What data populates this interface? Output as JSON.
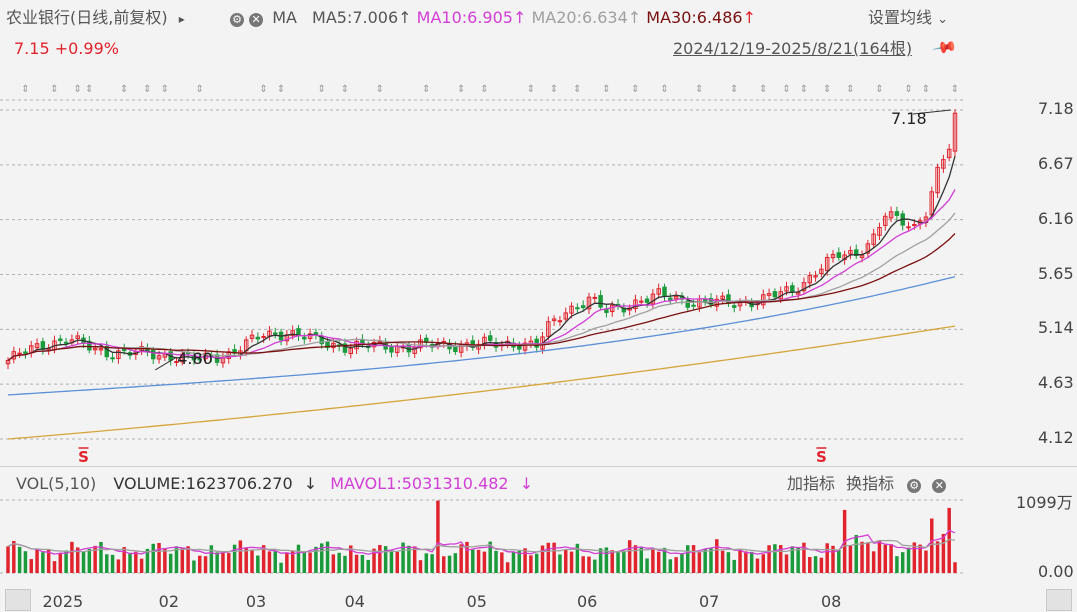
{
  "header": {
    "stock_name": "农业银行",
    "mode": "(日线,前复权)",
    "expand_glyph": "▸",
    "ma_label": "MA",
    "ma5": "MA5:7.006",
    "ma10": "MA10:6.905",
    "ma20": "MA20:6.634",
    "ma30": "MA30:6.486",
    "arrow_up": "↑",
    "settings": "设置均线",
    "settings_chevron": "⌄",
    "price": "7.15",
    "change": "+0.99%",
    "range": "2024/12/19-2025/8/21(164根)"
  },
  "sub_header": {
    "vol_label": "VOL(5,10)",
    "volume": "VOLUME:1623706.270",
    "volume_arrow": "↓",
    "mavol1": "MAVOL1:5031310.482",
    "mavol_arrow": "↓",
    "add_indicator": "加指标",
    "switch_indicator": "换指标"
  },
  "price_axis": [
    "7.18",
    "6.67",
    "6.16",
    "5.65",
    "5.14",
    "4.63",
    "4.12"
  ],
  "volume_axis": [
    "1099万",
    "0.00"
  ],
  "x_axis": [
    "2025",
    "02",
    "03",
    "04",
    "05",
    "06",
    "07",
    "08"
  ],
  "annotations": {
    "high": "7.18",
    "low": "4.80",
    "marker": "S"
  },
  "colors": {
    "up": "#e0232d",
    "down": "#1a9a3a",
    "ma5": "#333333",
    "ma10": "#d23ed6",
    "ma20": "#a0a0a0",
    "ma30": "#7a1010",
    "ma60": "#5b8fd6",
    "ma120": "#d4a53a"
  },
  "chart_data": {
    "type": "candlestick",
    "title": "农业银行 (日线,前复权)",
    "x_range": [
      "2024/12/19",
      "2025/8/21"
    ],
    "bars": 164,
    "ylim": [
      4.12,
      7.18
    ],
    "last_close": 7.15,
    "high": 7.18,
    "low": 4.8,
    "ma": {
      "MA5": 7.006,
      "MA10": 6.905,
      "MA20": 6.634,
      "MA30": 6.486
    },
    "close_path": [
      [
        0,
        4.85
      ],
      [
        6,
        5.0
      ],
      [
        10,
        5.05
      ],
      [
        15,
        4.95
      ],
      [
        20,
        4.92
      ],
      [
        28,
        4.9
      ],
      [
        33,
        4.85
      ],
      [
        38,
        4.92
      ],
      [
        44,
        5.08
      ],
      [
        48,
        5.12
      ],
      [
        55,
        5.0
      ],
      [
        62,
        4.98
      ],
      [
        70,
        4.98
      ],
      [
        78,
        5.0
      ],
      [
        84,
        5.0
      ],
      [
        88,
        5.02
      ],
      [
        91,
        4.98
      ],
      [
        93,
        5.15
      ],
      [
        96,
        5.32
      ],
      [
        100,
        5.42
      ],
      [
        103,
        5.3
      ],
      [
        108,
        5.4
      ],
      [
        112,
        5.45
      ],
      [
        118,
        5.4
      ],
      [
        124,
        5.38
      ],
      [
        130,
        5.42
      ],
      [
        135,
        5.5
      ],
      [
        140,
        5.72
      ],
      [
        143,
        5.82
      ],
      [
        146,
        5.85
      ],
      [
        149,
        6.0
      ],
      [
        151,
        6.2
      ],
      [
        153,
        6.15
      ],
      [
        156,
        6.1
      ],
      [
        158,
        6.25
      ],
      [
        160,
        6.6
      ],
      [
        162,
        6.82
      ],
      [
        163,
        6.95
      ],
      [
        164,
        7.15
      ]
    ],
    "volume": {
      "ylim": [
        0,
        10990000
      ],
      "last_volume": 1623706.27,
      "mavol1": 5031310.482,
      "spikes": [
        [
          74,
          10900000
        ],
        [
          144,
          9500000
        ],
        [
          159,
          8200000
        ],
        [
          162,
          9800000
        ]
      ]
    }
  }
}
